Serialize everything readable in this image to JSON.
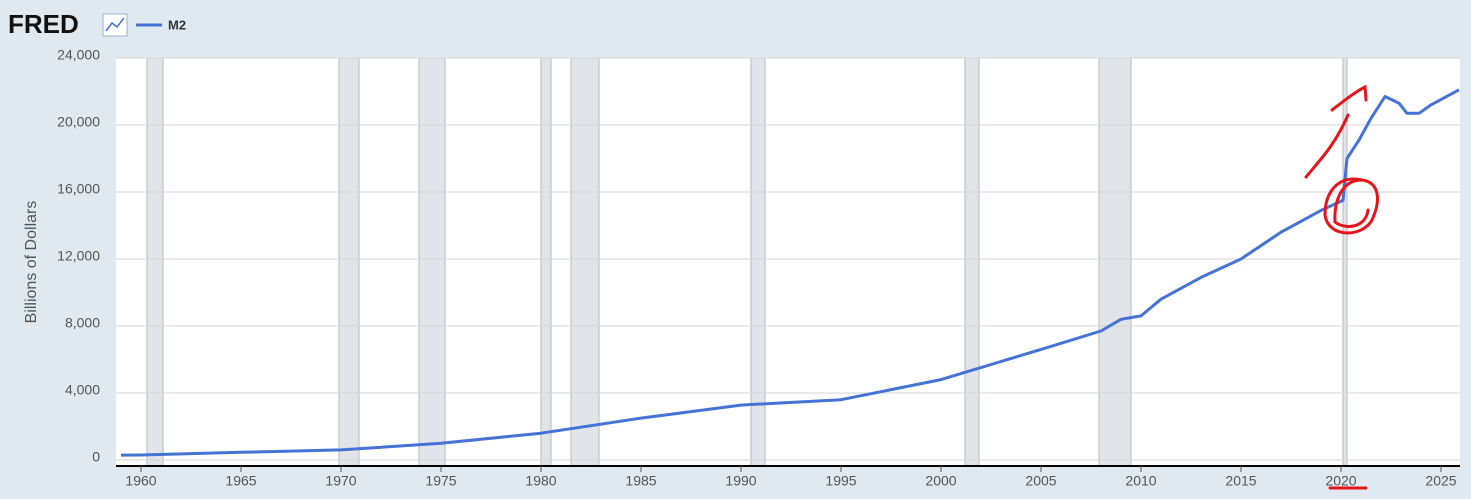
{
  "chart_data": {
    "type": "line",
    "logo": "FRED",
    "y_label": "Billions of Dollars",
    "series": [
      {
        "name": "M2",
        "color": "#4572d6",
        "x": [
          1959,
          1960,
          1965,
          1970,
          1975,
          1980,
          1985,
          1990,
          1995,
          2000,
          2005,
          2008,
          2009,
          2010,
          2011,
          2013,
          2015,
          2017,
          2019,
          2020.1,
          2020.3,
          2020.9,
          2021.5,
          2022.2,
          2022.9,
          2023.3,
          2023.9,
          2024.5,
          2025.9
        ],
        "values": [
          290,
          300,
          460,
          600,
          1000,
          1600,
          2500,
          3280,
          3600,
          4800,
          6600,
          7700,
          8400,
          8600,
          9600,
          10900,
          12000,
          13600,
          14900,
          15500,
          18000,
          19100,
          20400,
          21700,
          21300,
          20700,
          20700,
          21200,
          22100
        ]
      }
    ],
    "recessions": [
      [
        1960.3,
        1961.1
      ],
      [
        1969.9,
        1970.9
      ],
      [
        1973.9,
        1975.2
      ],
      [
        1980.0,
        1980.5
      ],
      [
        1981.5,
        1982.9
      ],
      [
        1990.5,
        1991.2
      ],
      [
        2001.2,
        2001.9
      ],
      [
        2007.9,
        2009.5
      ],
      [
        2020.1,
        2020.3
      ]
    ],
    "xlim": [
      1958.75,
      2025.95
    ],
    "xticks": [
      1960,
      1965,
      1970,
      1975,
      1980,
      1985,
      1990,
      1995,
      2000,
      2005,
      2010,
      2015,
      2020,
      2025
    ],
    "ylim": [
      0,
      24000
    ],
    "yticks": [
      {
        "value": 0,
        "label": "0"
      },
      {
        "value": 4000,
        "label": "4,000"
      },
      {
        "value": 8000,
        "label": "8,000"
      },
      {
        "value": 12000,
        "label": "12,000"
      },
      {
        "value": 16000,
        "label": "16,000"
      },
      {
        "value": 20000,
        "label": "20,000"
      },
      {
        "value": 24000,
        "label": "24,000"
      }
    ],
    "grid": true
  }
}
